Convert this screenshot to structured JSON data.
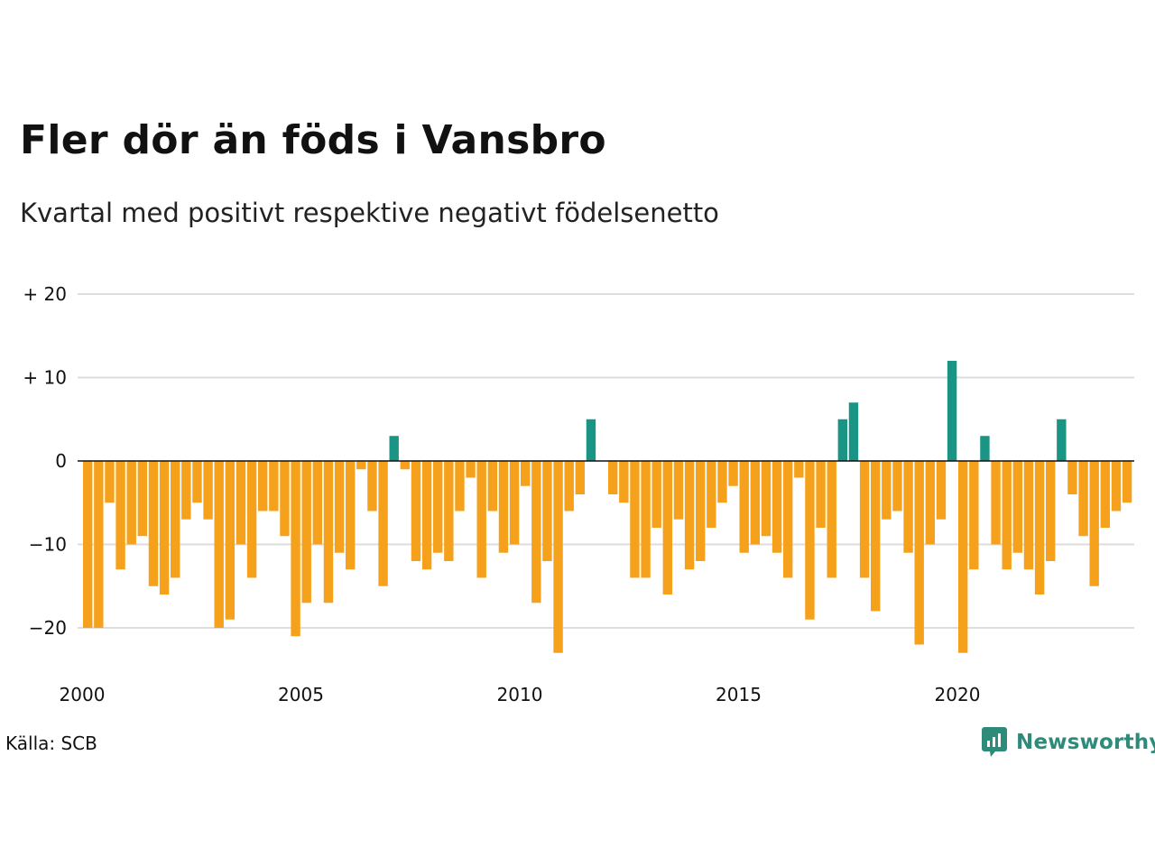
{
  "title": "Fler dör än föds i Vansbro",
  "subtitle": "Kvartal med positivt respektive negativt födelsenetto",
  "source": "Källa: SCB",
  "brand": {
    "name": "Newsworthy",
    "icon": "newsworthy-logo-icon",
    "color": "#2e8b7a"
  },
  "colors": {
    "positive": "#1a9585",
    "negative": "#f5a11c",
    "grid": "#dddddd",
    "zero_line": "#111111"
  },
  "chart_data": {
    "type": "bar",
    "title": "Fler dör än föds i Vansbro",
    "subtitle": "Kvartal med positivt respektive negativt födelsenetto",
    "xlabel": "",
    "ylabel": "",
    "x_start": 2000,
    "x_end": 2024,
    "ylim": [
      -25,
      20
    ],
    "y_ticks": [
      {
        "value": 20,
        "label": "+ 20"
      },
      {
        "value": 10,
        "label": "+ 10"
      },
      {
        "value": 0,
        "label": "0"
      },
      {
        "value": -10,
        "label": "−10"
      },
      {
        "value": -20,
        "label": "−20"
      }
    ],
    "x_ticks": [
      "2000",
      "2005",
      "2010",
      "2015",
      "2020"
    ],
    "grid": true,
    "legend": "none",
    "categories": [
      "2000 K1",
      "2000 K2",
      "2000 K3",
      "2000 K4",
      "2001 K1",
      "2001 K2",
      "2001 K3",
      "2001 K4",
      "2002 K1",
      "2002 K2",
      "2002 K3",
      "2002 K4",
      "2003 K1",
      "2003 K2",
      "2003 K3",
      "2003 K4",
      "2004 K1",
      "2004 K2",
      "2004 K3",
      "2004 K4",
      "2005 K1",
      "2005 K2",
      "2005 K3",
      "2005 K4",
      "2006 K1",
      "2006 K2",
      "2006 K3",
      "2006 K4",
      "2007 K1",
      "2007 K2",
      "2007 K3",
      "2007 K4",
      "2008 K1",
      "2008 K2",
      "2008 K3",
      "2008 K4",
      "2009 K1",
      "2009 K2",
      "2009 K3",
      "2009 K4",
      "2010 K1",
      "2010 K2",
      "2010 K3",
      "2010 K4",
      "2011 K1",
      "2011 K2",
      "2011 K3",
      "2011 K4",
      "2012 K1",
      "2012 K2",
      "2012 K3",
      "2012 K4",
      "2013 K1",
      "2013 K2",
      "2013 K3",
      "2013 K4",
      "2014 K1",
      "2014 K2",
      "2014 K3",
      "2014 K4",
      "2015 K1",
      "2015 K2",
      "2015 K3",
      "2015 K4",
      "2016 K1",
      "2016 K2",
      "2016 K3",
      "2016 K4",
      "2017 K1",
      "2017 K2",
      "2017 K3",
      "2017 K4",
      "2018 K1",
      "2018 K2",
      "2018 K3",
      "2018 K4",
      "2019 K1",
      "2019 K2",
      "2019 K3",
      "2019 K4",
      "2020 K1",
      "2020 K2",
      "2020 K3",
      "2020 K4",
      "2021 K1",
      "2021 K2",
      "2021 K3",
      "2021 K4",
      "2022 K1",
      "2022 K2",
      "2022 K3",
      "2022 K4",
      "2023 K1",
      "2023 K2",
      "2023 K3",
      "2023 K4"
    ],
    "values": [
      -20,
      -20,
      -5,
      -13,
      -10,
      -9,
      -15,
      -16,
      -14,
      -7,
      -5,
      -7,
      -20,
      -19,
      -10,
      -14,
      -6,
      -6,
      -9,
      -21,
      -17,
      -10,
      -17,
      -11,
      -13,
      -1,
      -6,
      -15,
      3,
      -1,
      -12,
      -13,
      -11,
      -12,
      -6,
      -2,
      -14,
      -6,
      -11,
      -10,
      -3,
      -17,
      -12,
      -23,
      -6,
      -4,
      5,
      0,
      -4,
      -5,
      -14,
      -14,
      -8,
      -16,
      -7,
      -13,
      -12,
      -8,
      -5,
      -3,
      -11,
      -10,
      -9,
      -11,
      -14,
      -2,
      -19,
      -8,
      -14,
      5,
      7,
      -14,
      -18,
      -7,
      -6,
      -11,
      -22,
      -10,
      -7,
      12,
      -23,
      -13,
      3,
      -10,
      -13,
      -11,
      -13,
      -16,
      -12,
      5,
      -4,
      -9,
      -15,
      -8,
      -6,
      -5
    ]
  }
}
